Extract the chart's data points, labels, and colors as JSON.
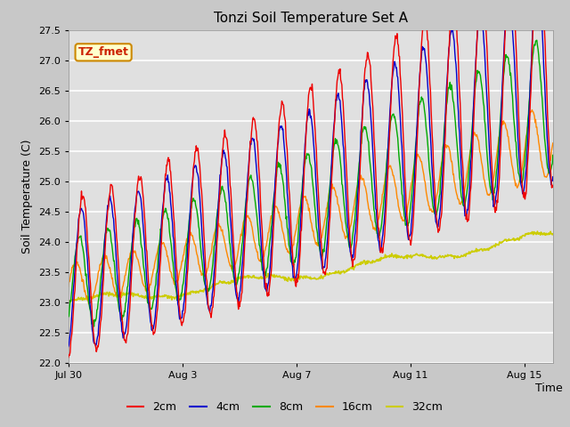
{
  "title": "Tonzi Soil Temperature Set A",
  "ylabel": "Soil Temperature (C)",
  "xlabel": "Time",
  "ylim": [
    22.0,
    27.5
  ],
  "yticks": [
    22.0,
    22.5,
    23.0,
    23.5,
    24.0,
    24.5,
    25.0,
    25.5,
    26.0,
    26.5,
    27.0,
    27.5
  ],
  "xtick_labels": [
    "Jul 30",
    "Aug 3",
    "Aug 7",
    "Aug 11",
    "Aug 15"
  ],
  "xtick_positions": [
    0,
    4,
    8,
    12,
    16
  ],
  "n_days": 17.0,
  "plot_bg_color": "#e0e0e0",
  "fig_bg_color": "#c8c8c8",
  "line_colors": {
    "2cm": "#ee0000",
    "4cm": "#0000cc",
    "8cm": "#00aa00",
    "16cm": "#ff8800",
    "32cm": "#cccc00"
  },
  "legend_labels": [
    "2cm",
    "4cm",
    "8cm",
    "16cm",
    "32cm"
  ],
  "annotation_text": "TZ_fmet",
  "annotation_bg": "#ffffcc",
  "annotation_border": "#cc8800",
  "title_fontsize": 11,
  "axis_fontsize": 9,
  "tick_fontsize": 8,
  "legend_fontsize": 9
}
